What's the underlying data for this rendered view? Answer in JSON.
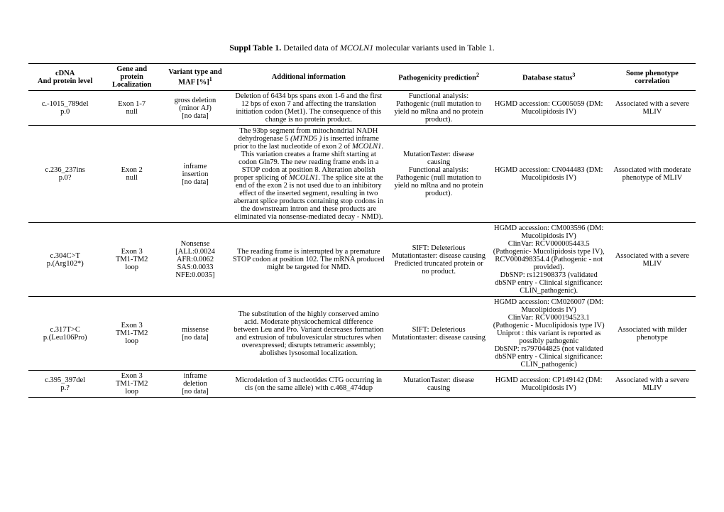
{
  "title_prefix": "Suppl Table 1.",
  "title_rest_a": " Detailed data of ",
  "title_italic": "MCOLN1",
  "title_rest_b": " molecular variants used in Table 1.",
  "headers": {
    "c1a": "cDNA",
    "c1b": "And protein level",
    "c2a": "Gene and protein",
    "c2b": "Localization",
    "c3a": "Variant type and",
    "c3b_pre": "MAF [%]",
    "c3b_sup": "1",
    "c4": "Additional information",
    "c5_pre": "Pathogenicity prediction",
    "c5_sup": "2",
    "c6_pre": "Database status",
    "c6_sup": "3",
    "c7a": "Some phenotype",
    "c7b": "correlation"
  },
  "rows": [
    {
      "cdna": "c.-1015_789del\np.0",
      "gene": "Exon 1-7\nnull",
      "variant": "gross deletion\n(minor AJ)\n[no data]",
      "info": "Deletion of 6434 bps spans exon 1-6 and the first 12 bps of exon 7 and affecting the translation initiation codon (Met1). The consequence of this change is no protein product.",
      "patho": "Functional analysis: Pathogenic (null mutation to yield no mRna and no protein product).",
      "db": "HGMD accession: CG005059 (DM: Mucolipidosis IV)",
      "pheno": "Associated with a severe MLIV"
    },
    {
      "cdna": "c.236_237ins\np.0?",
      "gene": "Exon 2\nnull",
      "variant": "inframe\ninsertion\n[no data]",
      "info_pre": "The 93bp segment from mitochondrial NADH dehydrogenase 5 ",
      "info_it": "(MTND5 )",
      "info_mid": " is inserted inframe prior to the last nucleotide of exon 2 of ",
      "info_it2": "MCOLN1",
      "info_post": ". This variation creates a frame shift starting at codon Gln79. The new reading frame ends in a STOP codon at position 8. Alteration abolish proper splicing of ",
      "info_it3": "MCOLN1",
      "info_end": ". The splice site at the end of the exon 2 is not used due to an inhibitory effect of the inserted segment, resulting in two aberrant splice products containing stop codons in the downstream intron and these products are eliminated via nonsense-mediated decay - NMD).",
      "patho": "MutationTaster: disease causing\nFunctional analysis: Pathogenic (null mutation to yield no mRna and no protein product).",
      "db": "HGMD accession: CN044483 (DM: Mucolipidosis IV)",
      "pheno": "Associated with moderate phenotype of MLIV"
    },
    {
      "cdna": "c.304C>T\np.(Arg102*)",
      "gene": "Exon 3\nTM1-TM2\nloop",
      "variant": "Nonsense\n[ALL:0.0024\nAFR:0.0062\nSAS:0.0033\nNFE:0.0035]",
      "info": "The reading frame is interrupted by a premature STOP codon at position 102. The mRNA produced might be targeted for NMD.",
      "patho": "SIFT: Deleterious\nMutationtaster: disease causing\nPredicted truncated protein or no product.",
      "db": "HGMD accession: CM003596 (DM: Mucolipidosis IV)\nClinVar: RCV000005443.5 (Pathogenic- Mucolipidosis type IV), RCV000498354.4 (Pathogenic - not provided).\nDbSNP: rs121908373 (validated dbSNP entry - Clinical significance: CLIN_pathogenic).",
      "pheno": "Associated with a severe MLIV"
    },
    {
      "cdna": "c.317T>C\np.(Leu106Pro)",
      "gene": "Exon 3\nTM1-TM2\nloop",
      "variant": "missense\n[no data]",
      "info": "The substitution of the highly conserved amino acid. Moderate physicochemical difference between Leu and Pro. Variant decreases formation and extrusion of tubulovesicular structures when overexpressed; disrupts tetrameric assembly; abolishes lysosomal localization.",
      "patho": "SIFT: Deleterious\nMutationtaster: disease causing",
      "db": "HGMD accession: CM026007 (DM: Mucolipidosis IV)\nClinVar: RCV000194523.1 (Pathogenic - Mucolipidosis type IV)\nUniprot : this variant is reported as possibly pathogenic\nDbSNP: rs797044825 (not validated dbSNP entry - Clinical significance: CLIN_pathogenic)",
      "pheno": "Associated with milder phenotype"
    },
    {
      "cdna": "c.395_397del\np.?",
      "gene": "Exon 3\nTM1-TM2\nloop",
      "variant": "inframe\ndeletion\n[no data]",
      "info": "Microdeletion of 3 nucleotides CTG occurring in cis (on the same allele) with c.468_474dup",
      "patho": "MutationTaster: disease causing",
      "db": "HGMD accession: CP149142 (DM: Mucolipidosis IV)",
      "pheno": "Associated with a severe MLIV"
    }
  ]
}
